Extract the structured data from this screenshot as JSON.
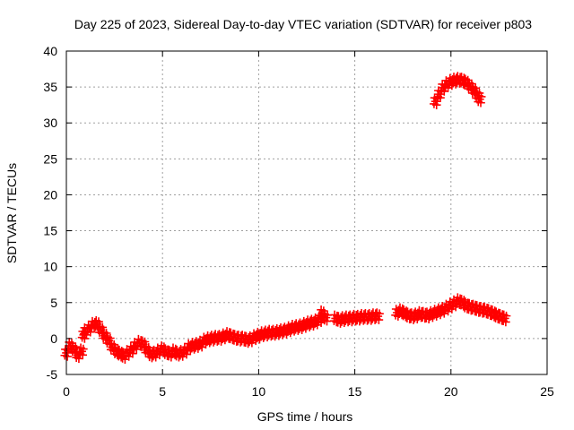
{
  "chart_data": {
    "type": "scatter",
    "title": "Day 225 of 2023, Sidereal Day-to-day VTEC variation (SDTVAR) for receiver p803",
    "xlabel": "GPS time / hours",
    "ylabel": "SDTVAR / TECUs",
    "xlim": [
      0,
      25
    ],
    "ylim": [
      -5,
      40
    ],
    "xticks": [
      "0",
      "5",
      "10",
      "15",
      "20",
      "25"
    ],
    "yticks": [
      "-5",
      "0",
      "5",
      "10",
      "15",
      "20",
      "25",
      "30",
      "35",
      "40"
    ],
    "grid": true,
    "marker": "+",
    "series": [
      {
        "name": "SDTVAR",
        "color": "#ff0000",
        "x": [
          0.0,
          0.2,
          0.4,
          0.6,
          0.8,
          0.9,
          1.0,
          1.2,
          1.4,
          1.6,
          1.8,
          2.0,
          2.2,
          2.4,
          2.6,
          2.8,
          3.0,
          3.2,
          3.4,
          3.6,
          3.8,
          4.0,
          4.2,
          4.4,
          4.6,
          4.8,
          5.0,
          5.2,
          5.4,
          5.6,
          5.8,
          6.0,
          6.2,
          6.4,
          6.6,
          6.8,
          7.0,
          7.2,
          7.4,
          7.6,
          7.8,
          8.0,
          8.2,
          8.4,
          8.6,
          8.8,
          9.0,
          9.2,
          9.4,
          9.6,
          9.8,
          10.0,
          10.2,
          10.4,
          10.6,
          10.8,
          11.0,
          11.2,
          11.4,
          11.6,
          11.8,
          12.0,
          12.2,
          12.4,
          12.6,
          12.8,
          13.0,
          13.2,
          13.3,
          13.5,
          14.0,
          14.2,
          14.4,
          14.6,
          14.8,
          15.0,
          15.2,
          15.4,
          15.6,
          15.8,
          16.0,
          16.2,
          17.2,
          17.4,
          17.6,
          17.8,
          18.0,
          18.2,
          18.4,
          18.6,
          18.8,
          19.0,
          19.2,
          19.4,
          19.6,
          19.8,
          20.0,
          20.2,
          20.4,
          20.6,
          20.8,
          21.0,
          21.2,
          21.4,
          21.6,
          21.8,
          22.0,
          22.2,
          22.4,
          22.6,
          22.8,
          19.2,
          19.4,
          19.6,
          19.8,
          20.0,
          20.2,
          20.4,
          20.6,
          20.8,
          21.0,
          21.2,
          21.4,
          21.5
        ],
        "y": [
          -2.0,
          -1.0,
          -1.5,
          -2.3,
          -1.8,
          0.5,
          1.0,
          1.4,
          1.9,
          2.0,
          1.2,
          0.4,
          -0.3,
          -1.2,
          -1.8,
          -2.1,
          -2.4,
          -2.0,
          -1.6,
          -1.0,
          -0.6,
          -0.8,
          -1.6,
          -2.2,
          -2.1,
          -1.8,
          -1.5,
          -1.9,
          -2.1,
          -1.8,
          -2.1,
          -2.0,
          -1.7,
          -1.2,
          -1.0,
          -0.9,
          -0.7,
          -0.3,
          -0.1,
          0.0,
          0.1,
          0.1,
          0.3,
          0.5,
          0.3,
          0.1,
          0.0,
          0.0,
          -0.2,
          -0.1,
          0.2,
          0.4,
          0.6,
          0.7,
          0.8,
          0.8,
          0.9,
          1.0,
          1.1,
          1.3,
          1.5,
          1.6,
          1.7,
          1.9,
          2.1,
          2.2,
          2.4,
          2.7,
          3.5,
          2.9,
          2.8,
          2.6,
          2.7,
          2.8,
          2.8,
          2.9,
          2.9,
          3.0,
          3.0,
          3.0,
          3.1,
          3.1,
          3.6,
          3.8,
          3.5,
          3.2,
          3.1,
          3.2,
          3.4,
          3.3,
          3.2,
          3.4,
          3.6,
          3.8,
          4.0,
          4.3,
          4.6,
          4.9,
          5.2,
          5.0,
          4.6,
          4.4,
          4.3,
          4.1,
          4.0,
          3.9,
          3.7,
          3.5,
          3.2,
          3.0,
          2.8,
          33.0,
          34.0,
          34.9,
          35.4,
          35.7,
          35.9,
          36.0,
          35.9,
          35.6,
          35.1,
          34.5,
          33.8,
          33.3
        ]
      }
    ]
  }
}
